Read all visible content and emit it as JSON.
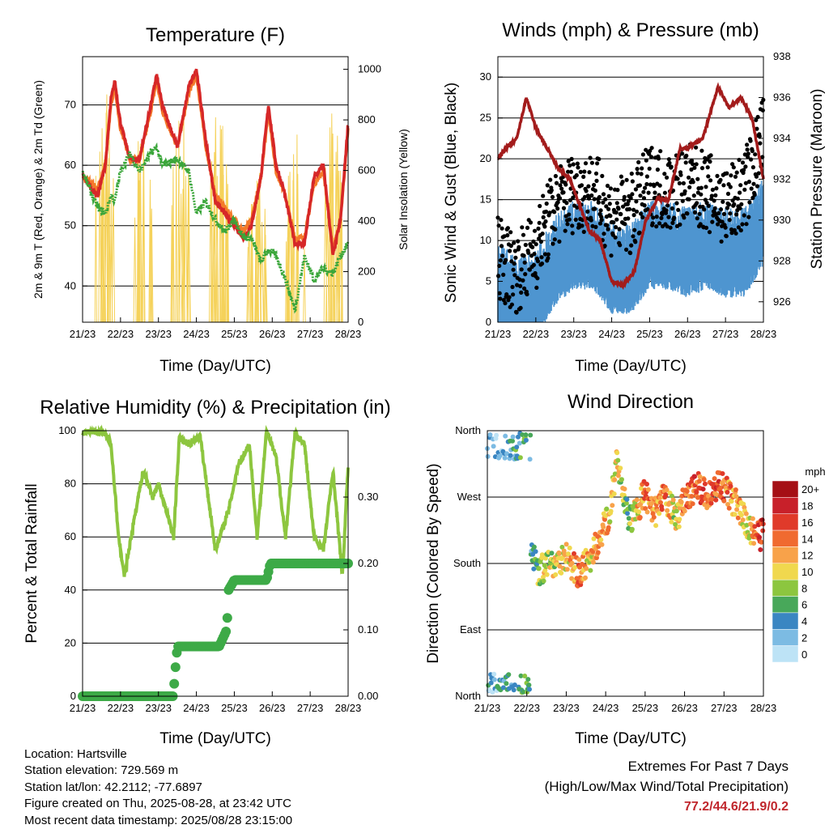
{
  "colors": {
    "temp2m": "#d62728",
    "temp9m": "#f47a2a",
    "dewpoint": "#3aa63a",
    "insolation": "#f5d25a",
    "wind": "#4e95d0",
    "gust": "#000000",
    "pressure": "#a31c1c",
    "rh": "#8dc63f",
    "precip": "#3daa47"
  },
  "x_ticks": [
    "21/23",
    "22/23",
    "23/23",
    "24/23",
    "25/23",
    "26/23",
    "27/23",
    "28/23"
  ],
  "x_label": "Time (Day/UTC)",
  "info": {
    "location": "Location: Hartsville",
    "elevation": "Station elevation: 729.569 m",
    "latlon": "Station lat/lon: 42.2112; -77.6897",
    "created": "Figure created on Thu, 2025-08-28, at 23:42 UTC",
    "recent": "Most recent data timestamp: 2025/08/28 23:15:00"
  },
  "extremes": {
    "title": "Extremes For Past 7 Days",
    "subtitle": "(High/Low/Max Wind/Total Precipitation)",
    "values": "77.2/44.6/21.9/0.2"
  },
  "chart_data": [
    {
      "type": "line",
      "title": "Temperature (F)",
      "xlabel": "Time (Day/UTC)",
      "ylabel": "2m & 9m T (Red, Orange) & 2m Td (Green)",
      "y2label": "Solar Insolation (Yellow)",
      "ylim": [
        34,
        78
      ],
      "y_ticks": [
        40,
        50,
        60,
        70
      ],
      "y2lim": [
        0,
        1050
      ],
      "y2_ticks": [
        0,
        200,
        400,
        600,
        800,
        1000
      ],
      "grid": true,
      "x": [
        0,
        0.25,
        0.4,
        0.6,
        0.75,
        0.85,
        1.0,
        1.25,
        1.5,
        1.8,
        1.95,
        2.1,
        2.5,
        2.8,
        3.0,
        3.25,
        3.5,
        3.75,
        4.0,
        4.25,
        4.45,
        4.7,
        4.9,
        5.1,
        5.3,
        5.6,
        5.85,
        6.1,
        6.35,
        6.6,
        6.8,
        7.0
      ],
      "series": [
        {
          "name": "2m T",
          "values": [
            58.5,
            56,
            55,
            60,
            71,
            74,
            67,
            61,
            61,
            70,
            75,
            70,
            63,
            73,
            76,
            64,
            54,
            52,
            50,
            48,
            50,
            58,
            70,
            60,
            56,
            47,
            47,
            58,
            60,
            45,
            51,
            67
          ]
        },
        {
          "name": "9m T",
          "values": [
            58,
            57,
            56,
            60,
            70,
            73,
            66,
            61,
            61,
            69,
            74,
            69,
            63,
            72,
            75,
            63,
            55,
            53,
            51,
            49,
            51,
            58,
            69,
            59,
            56,
            48,
            48,
            57,
            59,
            46,
            51,
            66
          ]
        },
        {
          "name": "2m Td",
          "values": [
            59,
            55,
            53,
            52,
            55,
            54,
            59,
            62,
            59,
            62,
            63,
            60,
            61,
            59,
            52,
            54,
            51,
            49,
            51,
            48,
            48,
            44,
            46,
            45,
            42,
            36,
            45,
            41,
            43,
            42,
            45,
            47
          ]
        }
      ],
      "insolation_series": {
        "name": "Solar Insolation",
        "day_peaks": [
          {
            "center": 0.6,
            "max": 1000
          },
          {
            "center": 1.6,
            "max": 950
          },
          {
            "center": 2.6,
            "max": 930
          },
          {
            "center": 3.6,
            "max": 960
          },
          {
            "center": 4.6,
            "max": 700
          },
          {
            "center": 5.6,
            "max": 830
          },
          {
            "center": 6.6,
            "max": 930
          }
        ]
      }
    },
    {
      "type": "scatter",
      "title": "Winds (mph) & Pressure (mb)",
      "xlabel": "Time (Day/UTC)",
      "ylabel": "Sonic Wind & Gust (Blue, Black)",
      "y2label": "Station Pressure (Maroon)",
      "ylim": [
        0,
        32.5
      ],
      "y_ticks": [
        0,
        5,
        10,
        15,
        20,
        25,
        30
      ],
      "y2lim": [
        925,
        938
      ],
      "y2_ticks": [
        926,
        928,
        930,
        932,
        934,
        936,
        938
      ],
      "grid": true,
      "wind_envelope": {
        "x": [
          0,
          0.5,
          1.0,
          1.5,
          2.0,
          2.5,
          3.0,
          3.5,
          4.0,
          4.5,
          5.0,
          5.5,
          6.0,
          6.5,
          7.0
        ],
        "wind_values": [
          5,
          3,
          4,
          8,
          10,
          10,
          7,
          7,
          10,
          10,
          9,
          10,
          9,
          9,
          13
        ],
        "gust_values": [
          8,
          6,
          9,
          14,
          16,
          16,
          13,
          13,
          17,
          16,
          17,
          16,
          14,
          16,
          23
        ]
      },
      "pressure": {
        "x": [
          0,
          0.2,
          0.5,
          0.75,
          1.0,
          1.3,
          1.6,
          1.9,
          2.1,
          2.4,
          2.7,
          3.0,
          3.3,
          3.6,
          3.9,
          4.2,
          4.5,
          4.8,
          5.0,
          5.4,
          5.8,
          6.1,
          6.4,
          6.7,
          7.0
        ],
        "values": [
          933,
          933.5,
          934,
          936,
          934.5,
          933.5,
          932.5,
          932,
          931,
          929.5,
          929,
          927,
          926.8,
          927.5,
          930,
          931,
          931,
          933.5,
          933.5,
          934,
          936.5,
          935.5,
          936,
          935,
          932
        ]
      }
    },
    {
      "type": "line",
      "title": "Relative Humidity (%) & Precipitation (in)",
      "xlabel": "Time (Day/UTC)",
      "ylabel": "Percent & Total Rainfall",
      "ylim": [
        0,
        100
      ],
      "y_ticks": [
        0,
        20,
        40,
        60,
        80,
        100
      ],
      "y2lim": [
        0,
        0.4
      ],
      "y2_ticks": [
        "0.00",
        "0.10",
        "0.20",
        "0.30"
      ],
      "grid": true,
      "rh": {
        "x": [
          0,
          0.2,
          0.45,
          0.55,
          0.75,
          0.95,
          1.1,
          1.4,
          1.6,
          1.85,
          2.0,
          2.4,
          2.55,
          2.8,
          3.1,
          3.5,
          3.85,
          4.1,
          4.4,
          4.6,
          4.85,
          5.1,
          5.35,
          5.6,
          5.85,
          6.1,
          6.35,
          6.6,
          6.85,
          7.0
        ],
        "values": [
          99,
          100,
          99,
          100,
          95,
          60,
          45,
          70,
          85,
          75,
          80,
          60,
          97,
          95,
          98,
          55,
          70,
          87,
          95,
          60,
          100,
          90,
          60,
          99,
          95,
          60,
          55,
          85,
          45,
          87
        ]
      },
      "precip": {
        "x": [
          0,
          2.4,
          2.42,
          2.5,
          3.6,
          3.8,
          3.85,
          4.0,
          4.85,
          4.95,
          7.0
        ],
        "values": [
          0,
          0,
          0.025,
          0.075,
          0.075,
          0.1,
          0.16,
          0.175,
          0.175,
          0.2,
          0.2
        ]
      }
    },
    {
      "type": "scatter",
      "title": "Wind Direction",
      "xlabel": "Time (Day/UTC)",
      "ylabel": "Direction (Colored By Speed)",
      "ylim": [
        0,
        360
      ],
      "y_tick_labels": [
        "North",
        "East",
        "South",
        "West",
        "North"
      ],
      "colorbar": {
        "label": "mph",
        "labels": [
          "20+",
          "18",
          "16",
          "14",
          "12",
          "10",
          "8",
          "6",
          "4",
          "2",
          "0"
        ],
        "colors": [
          "#a50f15",
          "#c8202a",
          "#e03a2a",
          "#f06a30",
          "#f8a24a",
          "#f0d84e",
          "#8cc63f",
          "#48a85a",
          "#3a86c2",
          "#7cbbe3",
          "#bde3f6"
        ]
      },
      "direction_trend": {
        "x": [
          0,
          0.3,
          0.5,
          0.8,
          1.0,
          1.1,
          1.3,
          1.6,
          2.0,
          2.3,
          2.6,
          2.9,
          3.1,
          3.3,
          3.6,
          4.0,
          4.2,
          4.5,
          4.8,
          5.0,
          5.3,
          5.6,
          5.9,
          6.3,
          6.6,
          6.9,
          7.0
        ],
        "direction": [
          10,
          15,
          345,
          350,
          330,
          200,
          170,
          180,
          190,
          165,
          185,
          220,
          250,
          320,
          235,
          275,
          245,
          270,
          240,
          270,
          285,
          270,
          290,
          260,
          230,
          215,
          225
        ],
        "speed": [
          3,
          3,
          4,
          5,
          6,
          4,
          8,
          9,
          11,
          13,
          11,
          12,
          11,
          10,
          7,
          14,
          12,
          13,
          9,
          13,
          15,
          14,
          15,
          12,
          10,
          16,
          18
        ]
      }
    }
  ]
}
